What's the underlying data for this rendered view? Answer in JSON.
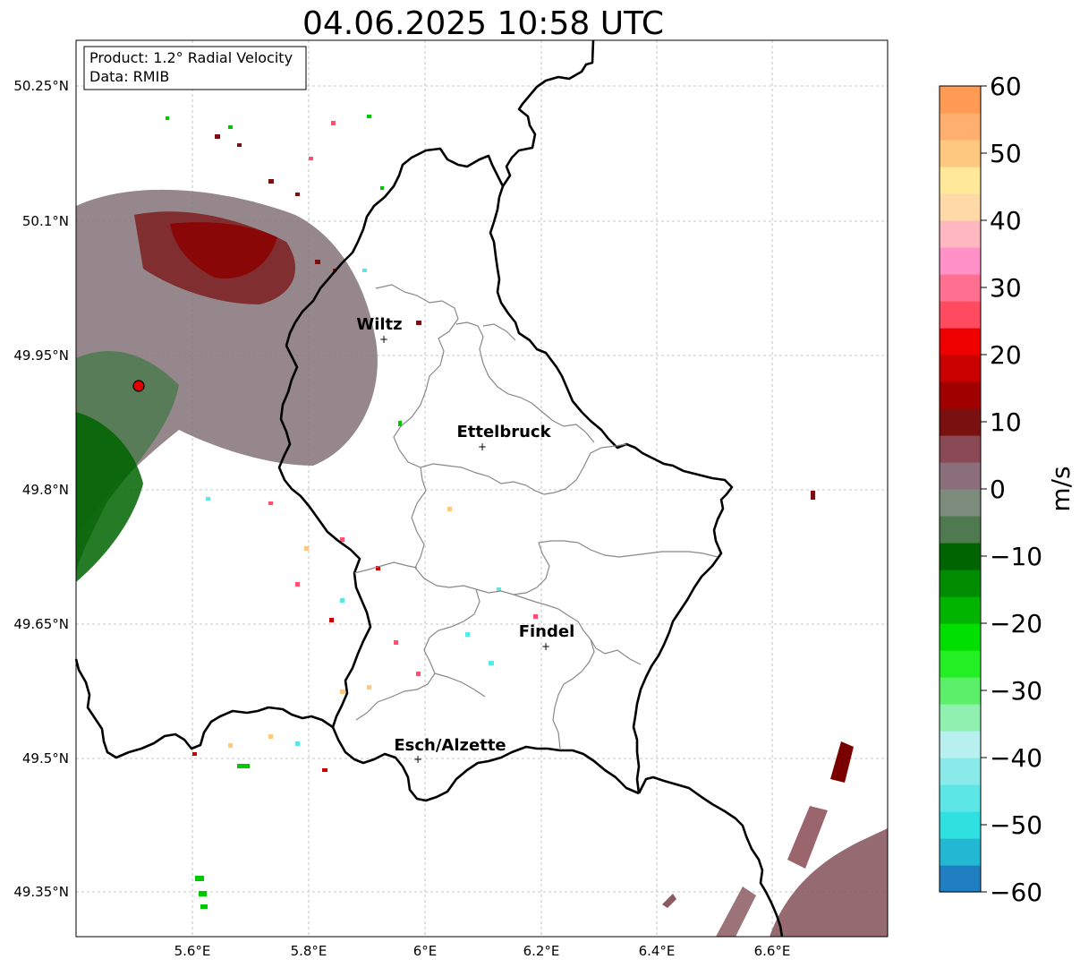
{
  "title": "04.06.2025 10:58 UTC",
  "info_box": {
    "product": "Product: 1.2° Radial Velocity",
    "data": "Data: RMIB"
  },
  "axes": {
    "lon_ticks": [
      "5.6°E",
      "5.8°E",
      "6°E",
      "6.2°E",
      "6.4°E",
      "6.6°E"
    ],
    "lat_ticks": [
      "50.25°N",
      "50.1°N",
      "49.95°N",
      "49.8°N",
      "49.65°N",
      "49.5°N",
      "49.35°N"
    ]
  },
  "cities": [
    {
      "name": "Wiltz"
    },
    {
      "name": "Ettelbruck"
    },
    {
      "name": "Findel"
    },
    {
      "name": "Esch/Alzette"
    }
  ],
  "colorbar": {
    "label": "m/s",
    "ticks": [
      "60",
      "50",
      "40",
      "30",
      "20",
      "10",
      "0",
      "−10",
      "−20",
      "−30",
      "−40",
      "−50",
      "−60"
    ],
    "min": -60,
    "max": 60,
    "stops": [
      "#1f7fc0",
      "#22b8d4",
      "#2fe0e0",
      "#5ce6e6",
      "#8aeaea",
      "#b8f0f0",
      "#8ff0b0",
      "#5cf06a",
      "#22f022",
      "#00e000",
      "#00b400",
      "#008c00",
      "#006400",
      "#4f7a4f",
      "#7d8b7d",
      "#8a6f7a",
      "#8a4a55",
      "#7a1010",
      "#a00000",
      "#c80000",
      "#ee0000",
      "#ff4a60",
      "#ff7090",
      "#ff90c8",
      "#ffb8c0",
      "#ffd9a8",
      "#ffe89a",
      "#ffc880",
      "#ffb070",
      "#ff9a55"
    ]
  },
  "colors": {
    "border": "#000000",
    "district": "#808080",
    "grid": "#b0b0b0",
    "radar_site": "#e00000"
  }
}
